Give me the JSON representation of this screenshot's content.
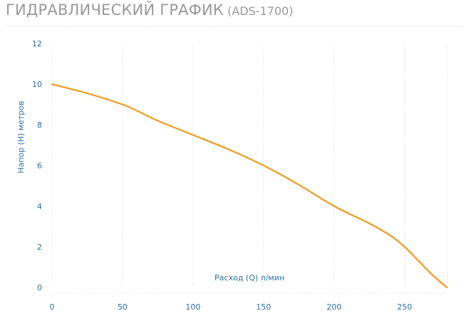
{
  "colors": {
    "title": "#999999",
    "text": "#2e6fa3",
    "grid": "#d9d9d9",
    "line": "#f39a1e"
  },
  "header": {
    "title": "ГИДРАВЛИЧЕСКИЙ ГРАФИК",
    "model": "(ADS-1700)"
  },
  "chart_data": {
    "type": "line",
    "title": "ГИДРАВЛИЧЕСКИЙ ГРАФИК (ADS-1700)",
    "xlabel": "Расход (Q) л/мин",
    "ylabel": "Напор (H) метров",
    "xlim": [
      0,
      280
    ],
    "ylim": [
      0,
      12
    ],
    "xticks": [
      0,
      50,
      100,
      150,
      200,
      250
    ],
    "yticks": [
      0,
      2,
      4,
      6,
      8,
      10,
      12
    ],
    "grid": "vertical",
    "series": [
      {
        "x": [
          0,
          25,
          50,
          60,
          75,
          100,
          125,
          150,
          175,
          200,
          225,
          240,
          250,
          260,
          270,
          280
        ],
        "y": [
          10,
          9.55,
          9.0,
          8.7,
          8.2,
          7.5,
          6.8,
          6.0,
          5.05,
          4.0,
          3.15,
          2.55,
          2.0,
          1.3,
          0.6,
          0
        ]
      }
    ]
  }
}
